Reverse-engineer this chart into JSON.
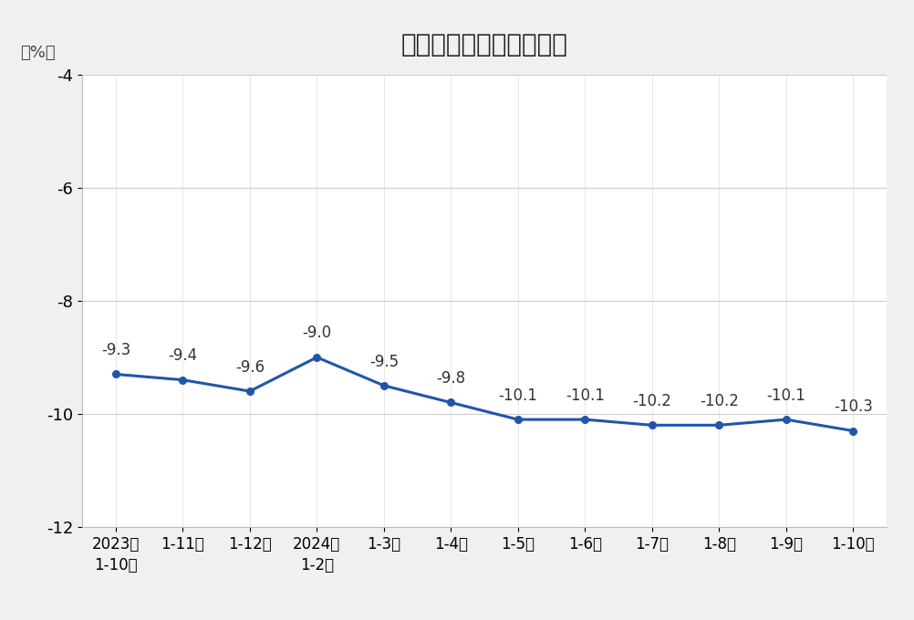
{
  "title": "全国房地产开发投资增速",
  "ylabel": "（%）",
  "x_labels": [
    "2023年\n1-10月",
    "1-11月",
    "1-12月",
    "2024年\n1-2月",
    "1-3月",
    "1-4月",
    "1-5月",
    "1-6月",
    "1-7月",
    "1-8月",
    "1-9月",
    "1-10月"
  ],
  "y_values": [
    -9.3,
    -9.4,
    -9.6,
    -9.0,
    -9.5,
    -9.8,
    -10.1,
    -10.1,
    -10.2,
    -10.2,
    -10.1,
    -10.3
  ],
  "annotations": [
    "-9.3",
    "-9.4",
    "-9.6",
    "-9.0",
    "-9.5",
    "-9.8",
    "-10.1",
    "-10.1",
    "-10.2",
    "-10.2",
    "-10.1",
    "-10.3"
  ],
  "line_color": "#2255AA",
  "marker_color": "#2255AA",
  "background_color": "#f0f0f0",
  "plot_bg_color": "#ffffff",
  "ylim": [
    -12,
    -4
  ],
  "yticks": [
    -12,
    -10,
    -8,
    -6,
    -4
  ],
  "title_fontsize": 20,
  "label_fontsize": 13,
  "annot_fontsize": 12
}
